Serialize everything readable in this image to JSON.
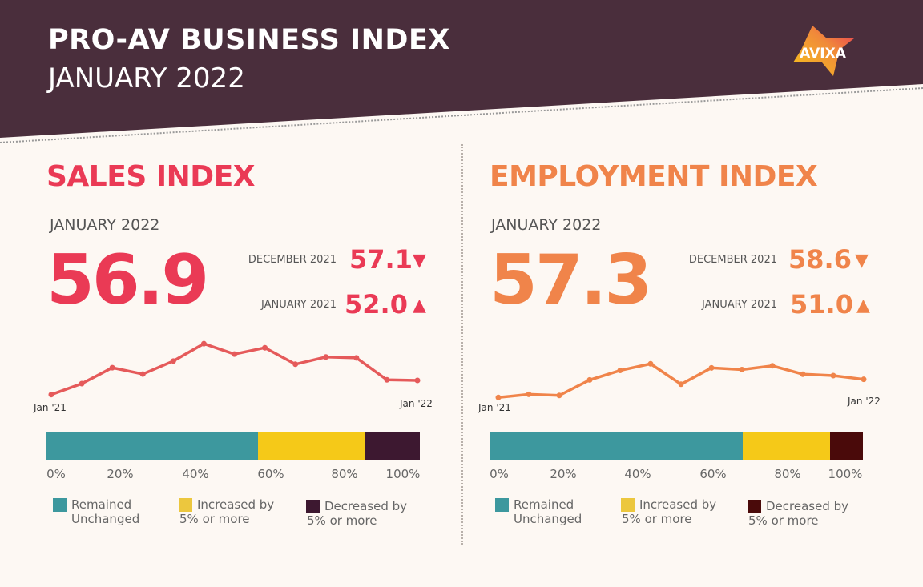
{
  "header": {
    "title": "PRO-AV BUSINESS INDEX",
    "subtitle": "JANUARY 2022",
    "logo": "AVIXA"
  },
  "colors": {
    "header_bg": "#4a2e3c",
    "sales": "#ea3a55",
    "employment": "#f0844a",
    "sales_line": "#e55a5a",
    "teal": "#3d989e",
    "yellow": "#f5c918",
    "sales_dark": "#3d1830",
    "employment_dark": "#4a0a0a"
  },
  "sales": {
    "title": "SALES INDEX",
    "month": "JANUARY 2022",
    "value": "56.9",
    "comparisons": [
      {
        "label": "DECEMBER 2021",
        "value": "57.1",
        "direction": "down",
        "arrow": "▼"
      },
      {
        "label": "JANUARY 2021",
        "value": "52.0",
        "direction": "up",
        "arrow": "▲"
      }
    ],
    "start_label": "Jan '21",
    "end_label": "Jan '22"
  },
  "employment": {
    "title": "EMPLOYMENT INDEX",
    "month": "JANUARY 2022",
    "value": "57.3",
    "comparisons": [
      {
        "label": "DECEMBER 2021",
        "value": "58.6",
        "direction": "down",
        "arrow": "▼"
      },
      {
        "label": "JANUARY 2021",
        "value": "51.0",
        "direction": "up",
        "arrow": "▲"
      }
    ],
    "start_label": "Jan '21",
    "end_label": "Jan '22"
  },
  "legend_lines": [
    [
      "Remained",
      "Unchanged"
    ],
    [
      "Increased by",
      "5% or more"
    ],
    [
      "Decreased by",
      "5% or more"
    ]
  ],
  "ticks": [
    "0%",
    "20%",
    "40%",
    "60%",
    "80%",
    "100%"
  ],
  "chart_data": [
    {
      "type": "line",
      "x": [
        "Jan '21",
        "",
        "",
        "",
        "",
        "",
        "",
        "",
        "",
        "",
        "",
        "",
        "Jan '22"
      ],
      "values": [
        52.0,
        55.8,
        61.3,
        59.1,
        63.6,
        69.6,
        66.0,
        68.2,
        62.5,
        65.0,
        64.7,
        57.1,
        56.9
      ]
    },
    {
      "type": "line",
      "x": [
        "Jan '21",
        "",
        "",
        "",
        "",
        "",
        "",
        "",
        "",
        "",
        "",
        "",
        "Jan '22"
      ],
      "values": [
        51.0,
        52.1,
        51.7,
        57.1,
        60.4,
        62.7,
        55.6,
        61.3,
        60.7,
        62.0,
        59.1,
        58.6,
        57.3
      ]
    },
    {
      "type": "bar",
      "stacked": true,
      "orientation": "horizontal",
      "series": [
        {
          "name": "Remained Unchanged",
          "values": [
            56.7
          ]
        },
        {
          "name": "Increased by 5% or more",
          "values": [
            28.5
          ]
        },
        {
          "name": "Decreased by 5% or more",
          "values": [
            14.8
          ]
        }
      ],
      "xlim": [
        0,
        100
      ]
    },
    {
      "type": "bar",
      "stacked": true,
      "orientation": "horizontal",
      "series": [
        {
          "name": "Remained Unchanged",
          "values": [
            67.8
          ]
        },
        {
          "name": "Increased by 5% or more",
          "values": [
            23.4
          ]
        },
        {
          "name": "Decreased by 5% or more",
          "values": [
            8.8
          ]
        }
      ],
      "xlim": [
        0,
        100
      ]
    }
  ]
}
